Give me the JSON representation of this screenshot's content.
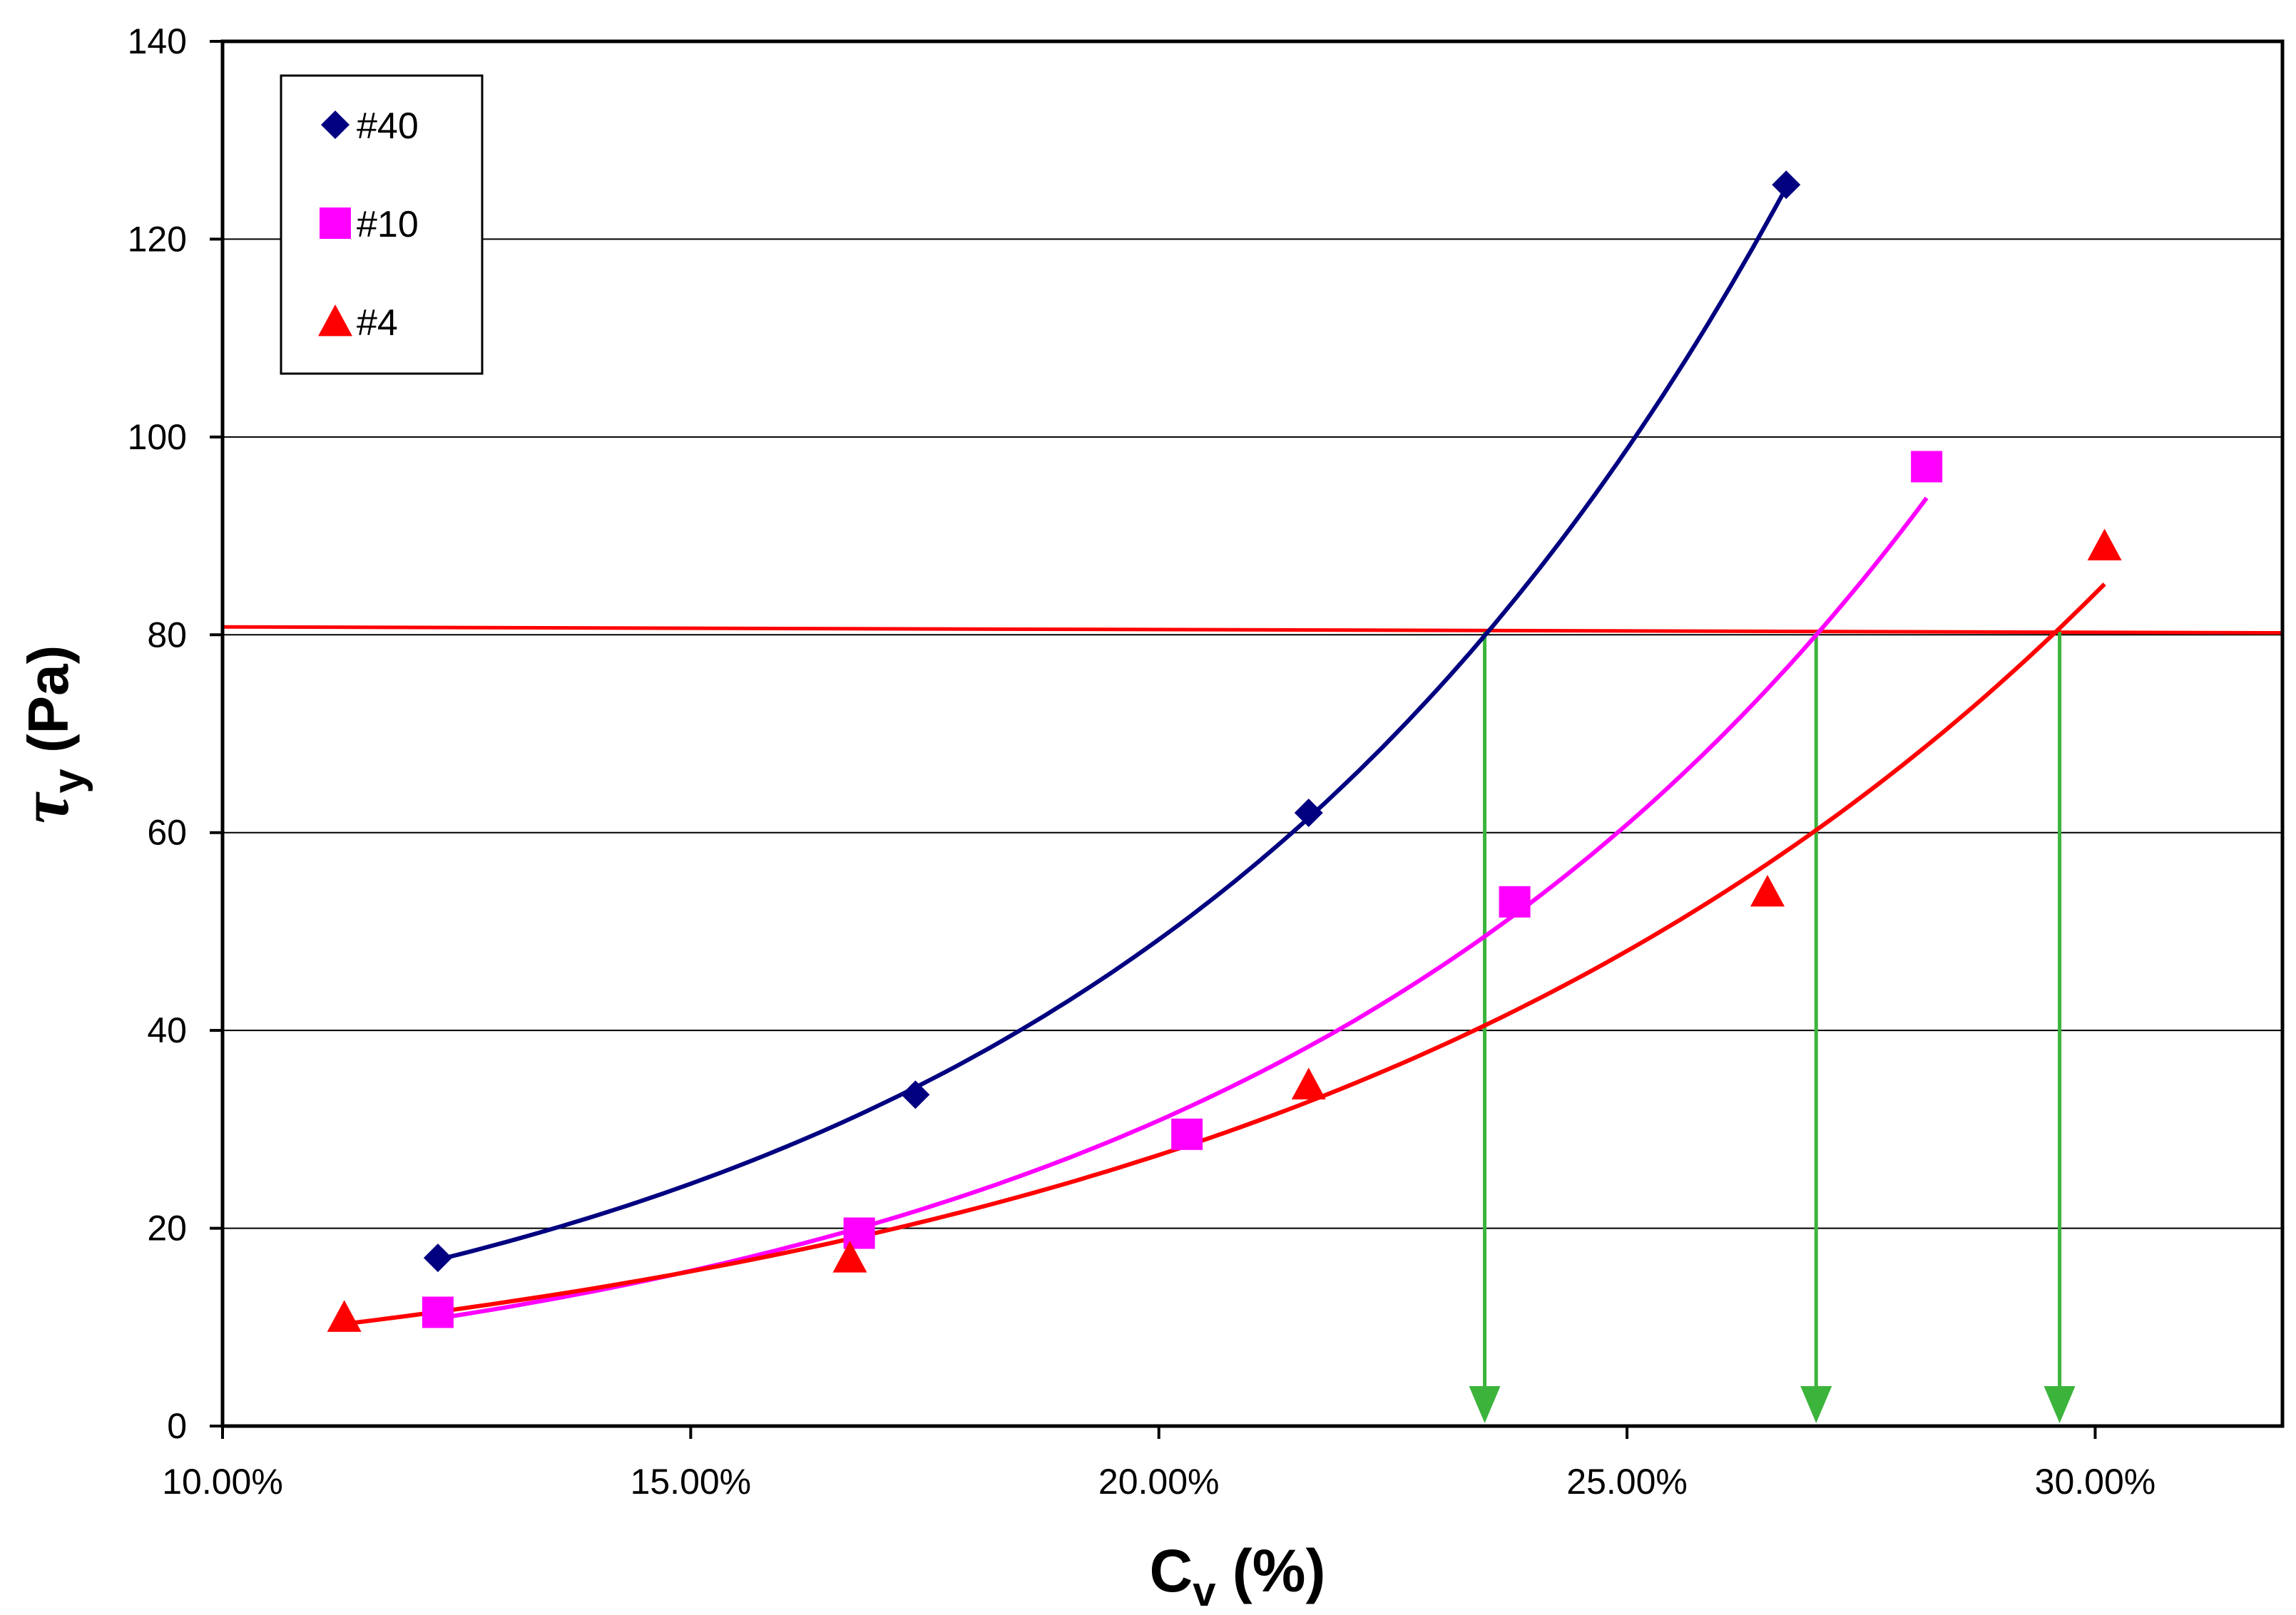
{
  "chart_data": {
    "type": "scatter",
    "title": "",
    "xlabel": {
      "main": "C",
      "sub": "v",
      "suffix": " (%)"
    },
    "ylabel": {
      "main": "τ",
      "sub": "y",
      "suffix": " (Pa)"
    },
    "xlim": [
      0.1,
      0.32
    ],
    "ylim": [
      0,
      140
    ],
    "xticks": [
      0.1,
      0.15,
      0.2,
      0.25,
      0.3
    ],
    "xtick_labels": [
      "10.00%",
      "15.00%",
      "20.00%",
      "25.00%",
      "30.00%"
    ],
    "yticks": [
      0,
      20,
      40,
      60,
      80,
      100,
      120,
      140
    ],
    "ytick_labels": [
      "0",
      "20",
      "40",
      "60",
      "80",
      "100",
      "120",
      "140"
    ],
    "grid": "horizontal",
    "legend_position": "top-left",
    "series": [
      {
        "name": "#40",
        "color": "#000080",
        "marker": "diamond",
        "x": [
          0.123,
          0.174,
          0.216,
          0.267
        ],
        "y": [
          17,
          33.5,
          62,
          125.5
        ],
        "trend": {
          "type": "exponential",
          "x_range": [
            0.123,
            0.267
          ]
        }
      },
      {
        "name": "#10",
        "color": "#ff00ff",
        "marker": "square",
        "x": [
          0.123,
          0.168,
          0.203,
          0.238,
          0.282
        ],
        "y": [
          11.5,
          19.5,
          29.5,
          53,
          97
        ],
        "trend": {
          "type": "exponential",
          "x_range": [
            0.123,
            0.282
          ]
        }
      },
      {
        "name": "#4",
        "color": "#ff0000",
        "marker": "triangle",
        "x": [
          0.113,
          0.167,
          0.216,
          0.265,
          0.301
        ],
        "y": [
          11,
          17,
          34.5,
          54,
          89
        ],
        "trend": {
          "type": "exponential",
          "x_range": [
            0.113,
            0.301
          ]
        }
      }
    ],
    "reference_line": {
      "type": "horizontal",
      "y_start": 80.8,
      "y_end": 80.2,
      "color": "#ff0000"
    },
    "drop_arrows": {
      "color": "#3cb43c",
      "x": [
        0.2348,
        0.2702,
        0.2962
      ],
      "from_y": 80.3,
      "to_y": 0
    }
  }
}
